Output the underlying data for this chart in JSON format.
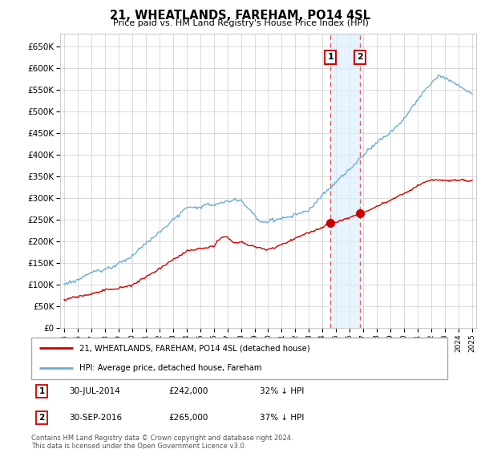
{
  "title": "21, WHEATLANDS, FAREHAM, PO14 4SL",
  "subtitle": "Price paid vs. HM Land Registry's House Price Index (HPI)",
  "legend_line1": "21, WHEATLANDS, FAREHAM, PO14 4SL (detached house)",
  "legend_line2": "HPI: Average price, detached house, Fareham",
  "annotation1_label": "1",
  "annotation1_date": "30-JUL-2014",
  "annotation1_price": "£242,000",
  "annotation1_pct": "32% ↓ HPI",
  "annotation2_label": "2",
  "annotation2_date": "30-SEP-2016",
  "annotation2_price": "£265,000",
  "annotation2_pct": "37% ↓ HPI",
  "footer": "Contains HM Land Registry data © Crown copyright and database right 2024.\nThis data is licensed under the Open Government Licence v3.0.",
  "hpi_color": "#6baed6",
  "price_color": "#cc0000",
  "vline_color": "#e06060",
  "vshade_color": "#ddeeff",
  "ylim": [
    0,
    680000
  ],
  "yticks": [
    0,
    50000,
    100000,
    150000,
    200000,
    250000,
    300000,
    350000,
    400000,
    450000,
    500000,
    550000,
    600000,
    650000
  ],
  "sale1_x": 2014.58,
  "sale2_x": 2016.75,
  "sale1_y": 242000,
  "sale2_y": 265000,
  "xlim_left": 1994.7,
  "xlim_right": 2025.3
}
